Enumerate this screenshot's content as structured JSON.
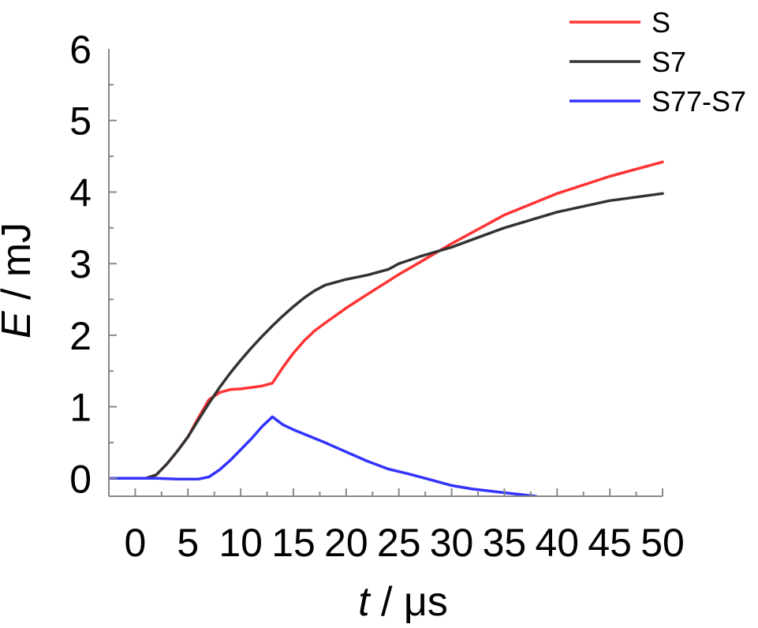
{
  "chart_data": {
    "type": "line",
    "title": "",
    "xlabel_var": "t",
    "xlabel_unit": " / μs",
    "ylabel_var": "E",
    "ylabel_unit": " / mJ",
    "xlim": [
      -2.5,
      50
    ],
    "ylim": [
      -0.25,
      6
    ],
    "x_ticks": [
      0,
      5,
      10,
      15,
      20,
      25,
      30,
      35,
      40,
      45,
      50
    ],
    "y_ticks": [
      0,
      1,
      2,
      3,
      4,
      5,
      6
    ],
    "legend_position": "top-right",
    "grid": false,
    "series": [
      {
        "name": "S",
        "color": "#ff3333",
        "points": [
          [
            -2.5,
            0
          ],
          [
            1,
            0
          ],
          [
            2,
            0.05
          ],
          [
            3,
            0.2
          ],
          [
            4,
            0.38
          ],
          [
            5,
            0.58
          ],
          [
            6,
            0.85
          ],
          [
            7,
            1.1
          ],
          [
            8,
            1.2
          ],
          [
            9,
            1.24
          ],
          [
            10,
            1.25
          ],
          [
            11,
            1.27
          ],
          [
            12,
            1.29
          ],
          [
            13,
            1.33
          ],
          [
            14,
            1.55
          ],
          [
            15,
            1.75
          ],
          [
            16,
            1.92
          ],
          [
            17,
            2.06
          ],
          [
            18,
            2.17
          ],
          [
            20,
            2.38
          ],
          [
            22,
            2.57
          ],
          [
            25,
            2.85
          ],
          [
            27,
            3.02
          ],
          [
            30,
            3.28
          ],
          [
            35,
            3.68
          ],
          [
            40,
            3.98
          ],
          [
            45,
            4.22
          ],
          [
            50,
            4.42
          ]
        ]
      },
      {
        "name": "S7",
        "color": "#333333",
        "points": [
          [
            -2.5,
            0
          ],
          [
            1,
            0
          ],
          [
            2,
            0.05
          ],
          [
            3,
            0.2
          ],
          [
            4,
            0.38
          ],
          [
            5,
            0.58
          ],
          [
            6,
            0.82
          ],
          [
            7,
            1.05
          ],
          [
            8,
            1.27
          ],
          [
            9,
            1.47
          ],
          [
            10,
            1.65
          ],
          [
            11,
            1.82
          ],
          [
            12,
            1.98
          ],
          [
            13,
            2.13
          ],
          [
            14,
            2.27
          ],
          [
            15,
            2.4
          ],
          [
            16,
            2.52
          ],
          [
            17,
            2.62
          ],
          [
            18,
            2.7
          ],
          [
            20,
            2.78
          ],
          [
            22,
            2.84
          ],
          [
            24,
            2.92
          ],
          [
            25,
            3.0
          ],
          [
            27,
            3.1
          ],
          [
            30,
            3.23
          ],
          [
            35,
            3.5
          ],
          [
            40,
            3.72
          ],
          [
            45,
            3.88
          ],
          [
            50,
            3.98
          ]
        ]
      },
      {
        "name": "S77-S7",
        "color": "#3333ff",
        "points": [
          [
            -2.5,
            0
          ],
          [
            0,
            0
          ],
          [
            2,
            0
          ],
          [
            4,
            -0.01
          ],
          [
            6,
            -0.01
          ],
          [
            7,
            0.02
          ],
          [
            8,
            0.12
          ],
          [
            9,
            0.25
          ],
          [
            10,
            0.4
          ],
          [
            11,
            0.55
          ],
          [
            12,
            0.72
          ],
          [
            13,
            0.86
          ],
          [
            14,
            0.75
          ],
          [
            15,
            0.68
          ],
          [
            16,
            0.62
          ],
          [
            17,
            0.56
          ],
          [
            18,
            0.5
          ],
          [
            20,
            0.37
          ],
          [
            22,
            0.24
          ],
          [
            24,
            0.13
          ],
          [
            26,
            0.06
          ],
          [
            28,
            -0.02
          ],
          [
            30,
            -0.1
          ],
          [
            32,
            -0.15
          ],
          [
            35,
            -0.2
          ],
          [
            38,
            -0.25
          ]
        ]
      }
    ]
  }
}
